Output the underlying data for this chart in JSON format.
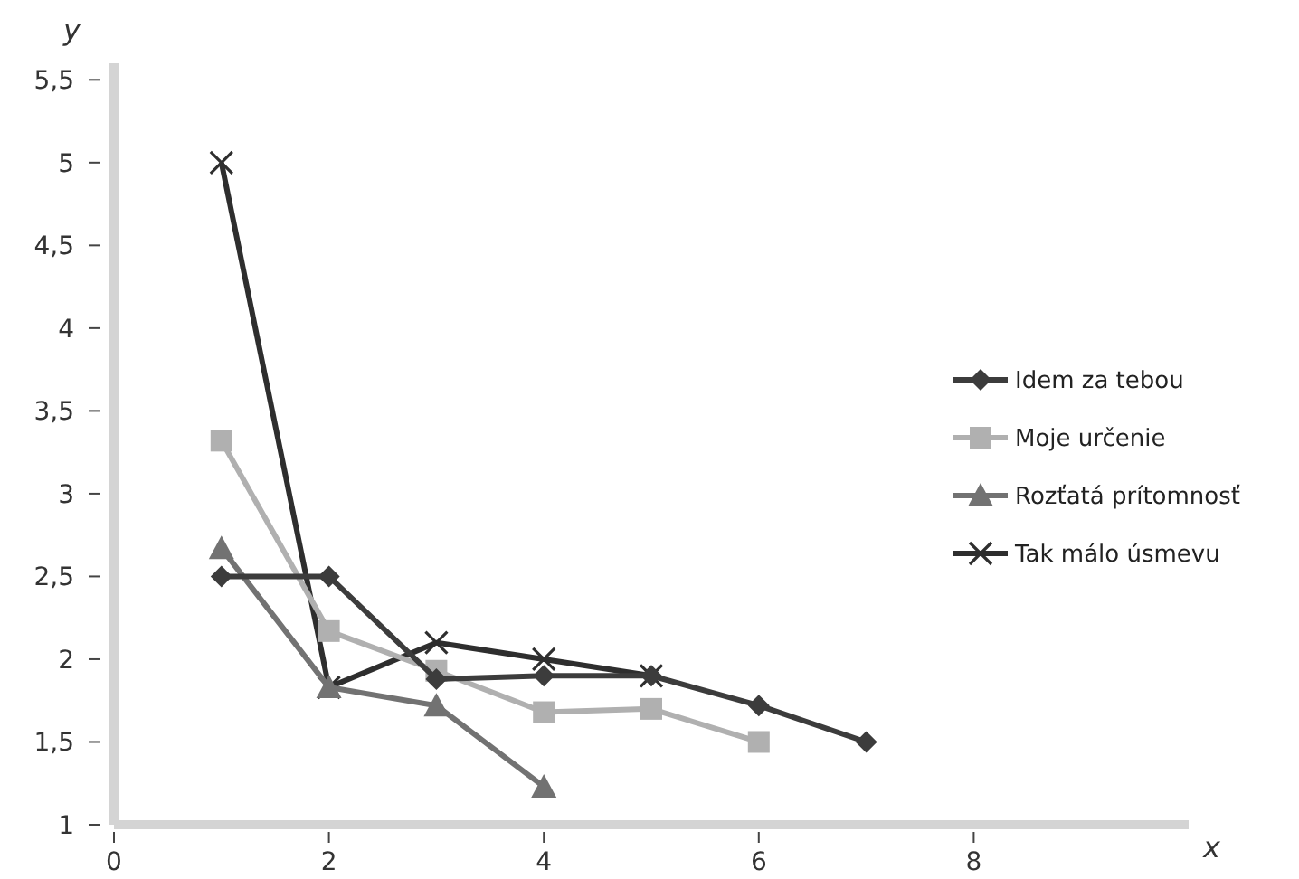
{
  "chart_data": {
    "type": "line",
    "xlabel": "x",
    "ylabel": "y",
    "xlim": [
      0,
      10
    ],
    "xticks": [
      0,
      2,
      4,
      6,
      8
    ],
    "ylim": [
      1,
      5.6
    ],
    "yticks": [
      1,
      {
        "value": 1.5,
        "label": "1,5"
      },
      2,
      {
        "value": 2.5,
        "label": "2,5"
      },
      3,
      {
        "value": 3.5,
        "label": "3,5"
      },
      4,
      {
        "value": 4.5,
        "label": "4,5"
      },
      5,
      {
        "value": 5.5,
        "label": "5,5"
      }
    ],
    "grid": false,
    "legend": "right",
    "line_style": "solid",
    "series": [
      {
        "name": "Idem za tebou",
        "color": "#3c3c3c",
        "marker": "diamond",
        "x": [
          1,
          2,
          3,
          4,
          5,
          6,
          7
        ],
        "values": [
          2.5,
          2.5,
          1.88,
          1.9,
          1.9,
          1.72,
          1.5
        ]
      },
      {
        "name": "Moje určenie",
        "color": "#b0b0b0",
        "marker": "square",
        "x": [
          1,
          2,
          3,
          4,
          5,
          6
        ],
        "values": [
          3.32,
          2.17,
          1.93,
          1.68,
          1.7,
          1.5
        ]
      },
      {
        "name": "Rozťatá prítomnosť",
        "color": "#727272",
        "marker": "triangle",
        "x": [
          1,
          2,
          3,
          4
        ],
        "values": [
          2.67,
          1.83,
          1.72,
          1.23
        ]
      },
      {
        "name": "Tak málo úsmevu",
        "color": "#2e2e2e",
        "marker": "cross",
        "x": [
          1,
          2,
          3,
          4,
          5
        ],
        "values": [
          5,
          1.83,
          2.1,
          2.0,
          1.9
        ]
      }
    ]
  }
}
